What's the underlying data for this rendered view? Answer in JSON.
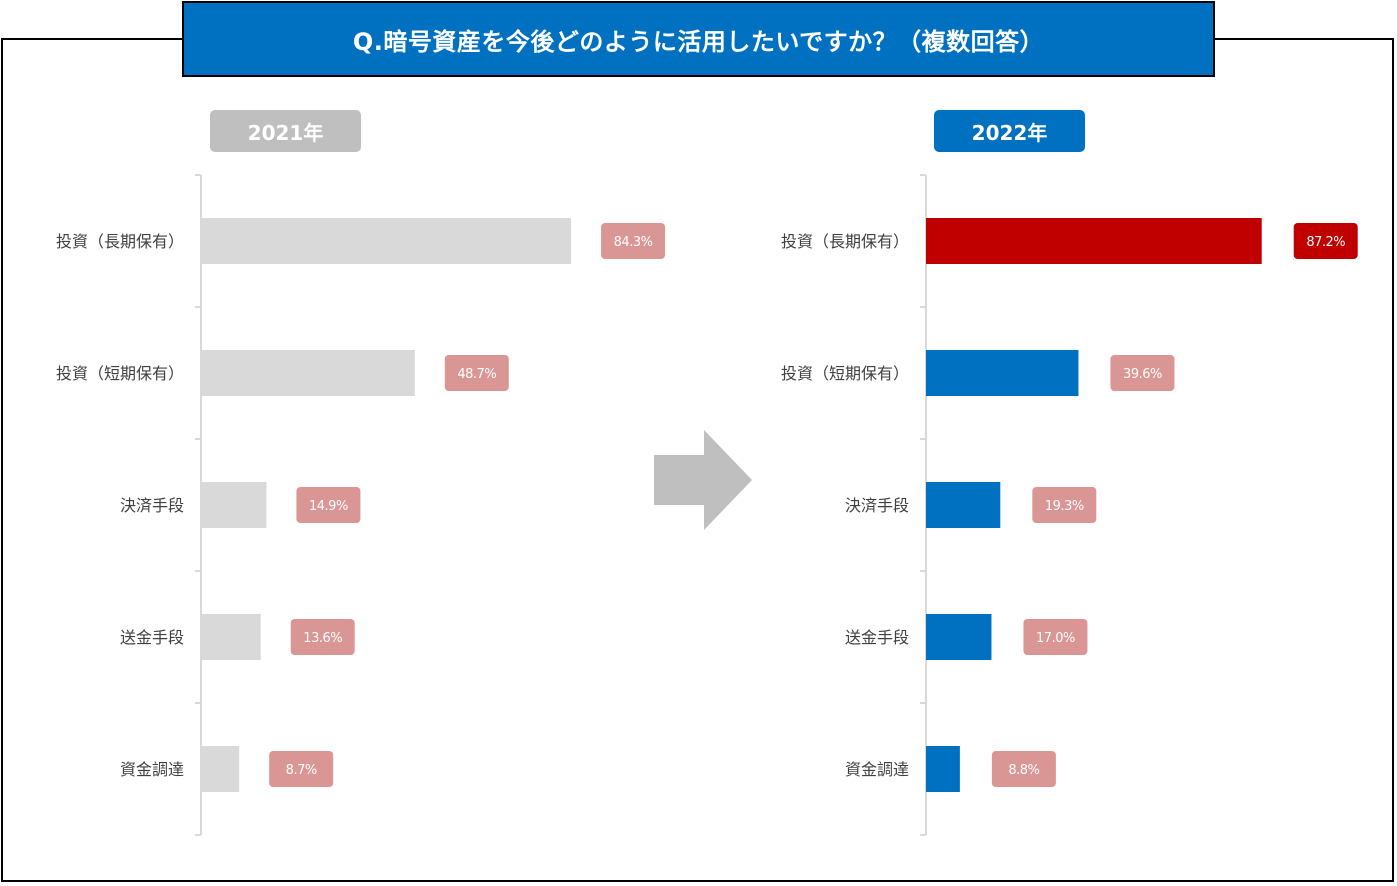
{
  "title": "Q.暗号資産を今後どのように活用したいですか？（複数回答）",
  "colors": {
    "header_bg": "#0070c0",
    "badge_2021": "#bfbfbf",
    "badge_2022": "#0070c0",
    "bar_2021": "#d9d9d9",
    "bar_2022": "#0070c0",
    "bar_2022_highlight": "#c00000",
    "label_2021": "#da9694",
    "label_2022": "#da9694",
    "label_2022_highlight": "#c00000",
    "arrow": "#bfbfbf"
  },
  "arrow_icon": "right-arrow-icon",
  "chart_data": [
    {
      "type": "bar",
      "orientation": "horizontal",
      "year_label": "2021年",
      "categories": [
        "投資（長期保有）",
        "投資（短期保有）",
        "決済手段",
        "送金手段",
        "資金調達"
      ],
      "values": [
        84.3,
        48.7,
        14.9,
        13.6,
        8.7
      ],
      "value_labels": [
        "84.3%",
        "48.7%",
        "14.9%",
        "13.6%",
        "8.7%"
      ],
      "xlim": [
        0,
        100
      ],
      "unit": "%",
      "grid": false,
      "legend": "none"
    },
    {
      "type": "bar",
      "orientation": "horizontal",
      "year_label": "2022年",
      "categories": [
        "投資（長期保有）",
        "投資（短期保有）",
        "決済手段",
        "送金手段",
        "資金調達"
      ],
      "values": [
        87.2,
        39.6,
        19.3,
        17.0,
        8.8
      ],
      "value_labels": [
        "87.2%",
        "39.6%",
        "19.3%",
        "17.0%",
        "8.8%"
      ],
      "highlight_index": 0,
      "xlim": [
        0,
        100
      ],
      "unit": "%",
      "grid": false,
      "legend": "none"
    }
  ]
}
